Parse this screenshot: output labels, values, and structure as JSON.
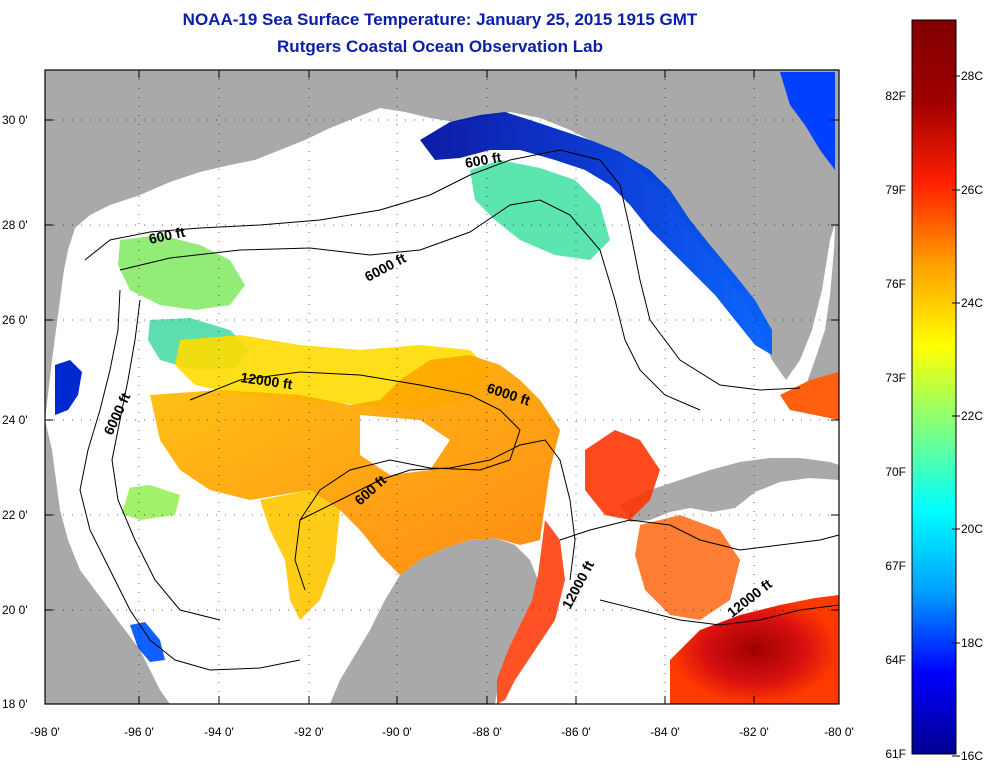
{
  "title": "NOAA-19 Sea Surface Temperature:  January 25, 2015 1915 GMT",
  "subtitle": "Rutgers Coastal Ocean Observation Lab",
  "lat_ticks": [
    "30 0'",
    "28 0'",
    "26 0'",
    "24 0'",
    "22 0'",
    "20 0'",
    "18 0'"
  ],
  "lon_ticks": [
    "-98 0'",
    "-96 0'",
    "-94 0'",
    "-92 0'",
    "-90 0'",
    "-88 0'",
    "-86 0'",
    "-84 0'",
    "-82 0'",
    "-80 0'"
  ],
  "contour_labels": [
    "600 ft",
    "600 ft",
    "6000 ft",
    "12000 ft",
    "6000 ft",
    "6000 ft",
    "600 ft",
    "12000 ft",
    "12000 ft"
  ],
  "colorbar": {
    "fahrenheit_labels": [
      "82F",
      "79F",
      "76F",
      "73F",
      "70F",
      "67F",
      "64F",
      "61F"
    ],
    "celsius_labels": [
      "28C",
      "26C",
      "24C",
      "22C",
      "20C",
      "18C",
      "16C"
    ],
    "colors": [
      "#00008f",
      "#0000ff",
      "#00a0ff",
      "#00ffff",
      "#7fff7f",
      "#ffff00",
      "#ff9f00",
      "#ff2000",
      "#a00000",
      "#7f0000"
    ]
  },
  "colors": {
    "land": "#a9a9a9",
    "cloud": "#ffffff",
    "title": "#0a1fa8"
  }
}
